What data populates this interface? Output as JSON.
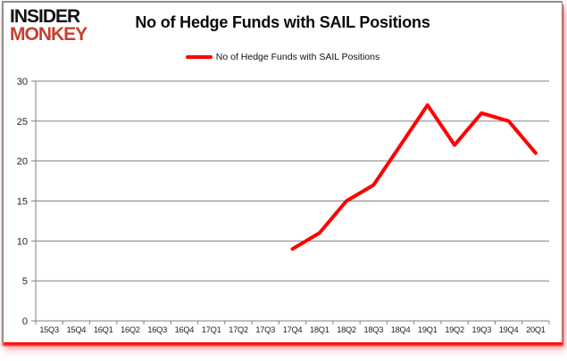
{
  "logo": {
    "line1": "INSIDER",
    "line2": "MONKEY"
  },
  "title": "No of Hedge Funds with SAIL Positions",
  "legend": {
    "label": "No of Hedge Funds with SAIL Positions"
  },
  "colors": {
    "line": "#ff0000",
    "grid": "#808080",
    "axis_text": "#23232c",
    "logo_black": "#111111",
    "logo_red": "#c4402f",
    "shadow_red": "#ff0000",
    "background": "#ffffff"
  },
  "chart_data": {
    "type": "line",
    "title": "No of Hedge Funds with SAIL Positions",
    "categories": [
      "15Q3",
      "15Q4",
      "16Q1",
      "16Q2",
      "16Q3",
      "16Q4",
      "17Q1",
      "17Q2",
      "17Q3",
      "17Q4",
      "18Q1",
      "18Q2",
      "18Q3",
      "18Q4",
      "19Q1",
      "19Q2",
      "19Q3",
      "19Q4",
      "20Q1"
    ],
    "series": [
      {
        "name": "No of Hedge Funds with SAIL Positions",
        "color": "#ff0000",
        "values": [
          null,
          null,
          null,
          null,
          null,
          null,
          null,
          null,
          null,
          9,
          11,
          15,
          17,
          22,
          27,
          22,
          26,
          25,
          21
        ]
      }
    ],
    "xlabel": "",
    "ylabel": "",
    "ylim": [
      0,
      30
    ],
    "ytick_step": 5,
    "grid": "horizontal",
    "legend_position": "top-center"
  }
}
